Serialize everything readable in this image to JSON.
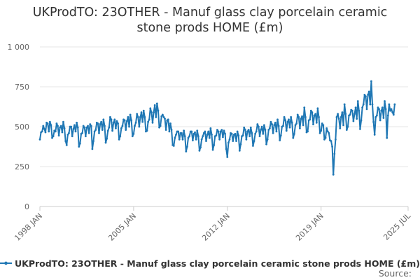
{
  "chart_data": {
    "type": "line",
    "title_lines": [
      "UKProdTO: 23OTHER - Manuf glass clay porcelain ceramic",
      "stone prods HOME (£m)"
    ],
    "xlabel": "",
    "ylabel": "",
    "y_tick_labels": [
      "0",
      "250",
      "500",
      "750",
      "1 000"
    ],
    "y_tick_values": [
      0,
      250,
      500,
      750,
      1000
    ],
    "ylim": [
      0,
      1000
    ],
    "x_tick_labels": [
      "1998 JAN",
      "2005 JAN",
      "2012 JAN",
      "2019 JAN",
      "2025 JUL"
    ],
    "x_tick_values": [
      "1998-01",
      "2005-01",
      "2012-01",
      "2019-01",
      "2025-07"
    ],
    "xlim": [
      "1998-01",
      "2025-07"
    ],
    "grid": "horizontal",
    "legend_position": "bottom",
    "series_color": "#1f77b4",
    "series": [
      {
        "name": "UKProdTO: 23OTHER - Manuf glass clay porcelain ceramic stone prods HOME (£m)",
        "start": "1998-01",
        "frequency": "monthly",
        "values": [
          420,
          465,
          470,
          505,
          485,
          465,
          525,
          520,
          470,
          530,
          510,
          430,
          440,
          475,
          470,
          520,
          505,
          445,
          495,
          505,
          465,
          530,
          490,
          410,
          385,
          450,
          460,
          500,
          500,
          440,
          485,
          510,
          470,
          525,
          495,
          375,
          395,
          455,
          460,
          505,
          495,
          440,
          495,
          505,
          460,
          515,
          505,
          360,
          410,
          470,
          480,
          525,
          520,
          460,
          515,
          530,
          480,
          545,
          505,
          400,
          425,
          475,
          495,
          560,
          545,
          475,
          525,
          545,
          490,
          535,
          520,
          420,
          440,
          490,
          505,
          545,
          540,
          480,
          535,
          560,
          500,
          575,
          540,
          440,
          455,
          505,
          525,
          580,
          560,
          500,
          560,
          590,
          530,
          600,
          560,
          470,
          475,
          530,
          545,
          615,
          590,
          525,
          590,
          635,
          560,
          645,
          600,
          495,
          505,
          565,
          575,
          560,
          550,
          480,
          540,
          545,
          470,
          520,
          480,
          385,
          380,
          430,
          450,
          470,
          470,
          420,
          460,
          460,
          420,
          475,
          440,
          345,
          375,
          430,
          440,
          470,
          470,
          415,
          455,
          465,
          420,
          475,
          440,
          350,
          370,
          420,
          440,
          460,
          470,
          410,
          450,
          470,
          430,
          490,
          450,
          355,
          385,
          440,
          445,
          480,
          470,
          420,
          470,
          480,
          435,
          475,
          455,
          360,
          310,
          400,
          420,
          460,
          455,
          410,
          450,
          455,
          410,
          470,
          445,
          350,
          390,
          440,
          445,
          495,
          480,
          420,
          470,
          480,
          440,
          495,
          460,
          380,
          410,
          455,
          470,
          515,
          500,
          440,
          480,
          500,
          455,
          510,
          480,
          390,
          420,
          480,
          490,
          530,
          515,
          460,
          510,
          525,
          470,
          545,
          505,
          415,
          445,
          500,
          505,
          560,
          540,
          475,
          530,
          545,
          495,
          560,
          525,
          430,
          455,
          510,
          520,
          575,
          560,
          490,
          550,
          565,
          510,
          620,
          560,
          465,
          470,
          540,
          545,
          600,
          590,
          515,
          570,
          580,
          525,
          615,
          560,
          460,
          475,
          520,
          510,
          420,
          430,
          490,
          470,
          460,
          415,
          410,
          375,
          200,
          330,
          420,
          560,
          580,
          550,
          490,
          560,
          590,
          510,
          640,
          580,
          480,
          500,
          570,
          575,
          605,
          600,
          535,
          580,
          620,
          550,
          660,
          600,
          485,
          540,
          620,
          640,
          700,
          690,
          610,
          700,
          720,
          640,
          785,
          640,
          530,
          450,
          560,
          570,
          620,
          610,
          540,
          600,
          620,
          555,
          660,
          610,
          430,
          570,
          640,
          600,
          610,
          590,
          575,
          640
        ]
      }
    ],
    "source_label": "Source:"
  }
}
